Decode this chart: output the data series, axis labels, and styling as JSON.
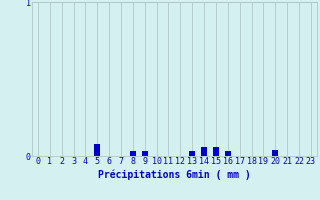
{
  "categories": [
    0,
    1,
    2,
    3,
    4,
    5,
    6,
    7,
    8,
    9,
    10,
    11,
    12,
    13,
    14,
    15,
    16,
    17,
    18,
    19,
    20,
    21,
    22,
    23
  ],
  "values": [
    0,
    0,
    0,
    0,
    0,
    0.08,
    0,
    0,
    0.03,
    0.03,
    0,
    0,
    0,
    0.03,
    0.06,
    0.06,
    0.03,
    0,
    0,
    0,
    0.04,
    0,
    0,
    0
  ],
  "bar_color": "#0000cc",
  "background_color": "#d5f0f0",
  "grid_color": "#b0c8c8",
  "xlabel": "Précipitations 6min ( mm )",
  "xlabel_color": "#0000cc",
  "ylabel_ticks": [
    "0",
    "1"
  ],
  "ylim": [
    0,
    1.0
  ],
  "ytick_vals": [
    0,
    1
  ],
  "bar_width": 0.5,
  "tick_fontsize": 6,
  "label_fontsize": 7
}
